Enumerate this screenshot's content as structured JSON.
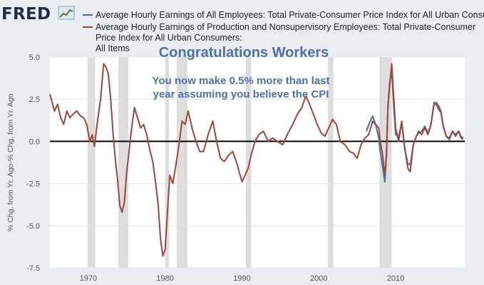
{
  "header": {
    "logo_text": "FRED",
    "logo_icon": "line-chart-icon"
  },
  "colors": {
    "series_cpi": "#4572a7",
    "series_prod": "#a0453a",
    "annotation": "#4f72a6",
    "recession": "#dddddd",
    "plot_bg": "#ffffff",
    "page_bg": "#eaeef3",
    "zero_line": "#000000"
  },
  "chart_data": {
    "type": "line",
    "title": "",
    "xlabel": "",
    "ylabel": "% Chg. from Yr. Ago-% Chg. from Yr. Ago",
    "xlim": [
      1965,
      2019
    ],
    "ylim": [
      -7.5,
      5.0
    ],
    "y_ticks": [
      5.0,
      2.5,
      0.0,
      -2.5,
      -5.0,
      -7.5
    ],
    "y_tick_labels": [
      "5.0",
      "2.5",
      "0.0",
      "-2.5",
      "-5.0",
      "-7.5"
    ],
    "x_ticks": [
      1970,
      1980,
      1990,
      2000,
      2010
    ],
    "x_tick_labels": [
      "1970",
      "1980",
      "1990",
      "2000",
      "2010"
    ],
    "grid": "horizontal",
    "legend_position": "top",
    "series": [
      {
        "name": "Average Hourly Earnings of All Employees: Total Private-Consumer Price Index for All Urban Consumers: All Items",
        "x": [
          2006.2,
          2006.6,
          2007.0,
          2007.4,
          2007.8,
          2008.0,
          2008.3,
          2008.6,
          2008.8,
          2009.0,
          2009.2,
          2009.5,
          2009.7,
          2010.0,
          2010.4,
          2010.8,
          2011.2,
          2011.6,
          2011.9,
          2012.3,
          2012.7,
          2013.0,
          2013.4,
          2013.8,
          2014.2,
          2014.6,
          2015.0,
          2015.3,
          2015.6,
          2015.9,
          2016.2,
          2016.6,
          2017.0,
          2017.4,
          2017.8,
          2018.2,
          2018.5,
          2018.8
        ],
        "values": [
          0.6,
          1.1,
          1.5,
          1.0,
          0.2,
          -0.6,
          -1.5,
          -2.4,
          -0.8,
          2.0,
          3.4,
          4.2,
          2.5,
          0.4,
          0.3,
          1.1,
          -0.5,
          -1.3,
          -1.4,
          -0.2,
          0.3,
          0.5,
          0.6,
          0.9,
          0.5,
          1.0,
          2.3,
          2.3,
          2.1,
          1.8,
          0.9,
          0.3,
          0.1,
          0.6,
          0.3,
          0.6,
          0.2,
          0.1
        ]
      },
      {
        "name": "Average Hourly Earnings of Production and Nonsupervisory Employees: Total Private-Consumer Price Index for All Urban Consumers: All Items",
        "x": [
          1965.0,
          1965.3,
          1965.6,
          1966.0,
          1966.4,
          1966.8,
          1967.2,
          1967.6,
          1968.0,
          1968.5,
          1969.0,
          1969.4,
          1969.8,
          1970.2,
          1970.5,
          1970.8,
          1971.2,
          1971.6,
          1972.0,
          1972.3,
          1972.6,
          1972.9,
          1973.2,
          1973.5,
          1973.8,
          1974.1,
          1974.4,
          1974.7,
          1975.0,
          1975.3,
          1975.7,
          1976.0,
          1976.4,
          1976.8,
          1977.2,
          1977.6,
          1978.0,
          1978.4,
          1978.8,
          1979.1,
          1979.4,
          1979.7,
          1980.0,
          1980.3,
          1980.6,
          1981.0,
          1981.4,
          1981.8,
          1982.2,
          1982.6,
          1983.0,
          1983.5,
          1984.0,
          1984.5,
          1985.0,
          1985.6,
          1986.2,
          1986.7,
          1987.2,
          1987.7,
          1988.3,
          1988.8,
          1989.4,
          1990.0,
          1990.4,
          1990.8,
          1991.2,
          1991.7,
          1992.2,
          1992.8,
          1993.4,
          1994.0,
          1994.6,
          1995.3,
          1996.0,
          1996.6,
          1997.2,
          1997.8,
          1998.3,
          1998.8,
          1999.3,
          1999.8,
          2000.3,
          2000.8,
          2001.3,
          2001.8,
          2002.3,
          2002.8,
          2003.4,
          2004.0,
          2004.5,
          2005.0,
          2005.5,
          2006.0,
          2006.5,
          2007.0,
          2007.4,
          2007.8,
          2008.0,
          2008.3,
          2008.6,
          2008.8,
          2009.0,
          2009.2,
          2009.5,
          2009.7,
          2010.0,
          2010.4,
          2010.8,
          2011.2,
          2011.6,
          2011.9,
          2012.3,
          2012.7,
          2013.0,
          2013.4,
          2013.8,
          2014.2,
          2014.6,
          2015.0,
          2015.3,
          2015.6,
          2015.9,
          2016.2,
          2016.6,
          2017.0,
          2017.4,
          2017.8,
          2018.2,
          2018.5,
          2018.8
        ],
        "values": [
          2.8,
          2.3,
          1.8,
          2.2,
          1.4,
          1.0,
          1.8,
          1.4,
          1.6,
          1.8,
          1.5,
          1.4,
          1.0,
          0.0,
          0.4,
          -0.3,
          1.2,
          2.5,
          4.6,
          4.4,
          4.0,
          2.6,
          0.6,
          -1.0,
          -2.2,
          -3.8,
          -4.2,
          -3.6,
          -1.8,
          -0.6,
          1.0,
          2.0,
          1.4,
          0.8,
          1.0,
          0.4,
          -0.5,
          -1.2,
          -2.6,
          -3.8,
          -5.8,
          -6.8,
          -6.4,
          -4.2,
          -2.0,
          -2.5,
          -1.4,
          -0.2,
          1.2,
          1.0,
          1.8,
          0.8,
          0.0,
          -0.6,
          -0.6,
          0.4,
          1.2,
          0.0,
          -1.0,
          -1.2,
          -0.8,
          -0.6,
          -1.4,
          -2.4,
          -2.0,
          -1.6,
          -0.8,
          0.0,
          0.4,
          0.6,
          0.0,
          0.2,
          0.0,
          -0.2,
          0.5,
          1.0,
          1.6,
          2.0,
          2.7,
          2.2,
          1.6,
          1.0,
          0.5,
          0.3,
          0.8,
          1.3,
          1.0,
          0.0,
          -0.2,
          -0.6,
          -0.7,
          -1.0,
          -0.2,
          0.2,
          0.4,
          1.2,
          1.0,
          0.8,
          0.0,
          -0.8,
          -2.0,
          -0.9,
          2.0,
          3.2,
          4.6,
          3.0,
          0.8,
          0.0,
          1.2,
          -0.4,
          -1.6,
          -1.8,
          -0.2,
          0.3,
          0.6,
          0.4,
          0.8,
          0.4,
          1.0,
          2.2,
          2.2,
          1.9,
          1.7,
          0.9,
          0.3,
          0.2,
          0.6,
          0.4,
          0.6,
          0.3,
          0.2
        ]
      }
    ],
    "recessions": [
      [
        1969.9,
        1970.9
      ],
      [
        1973.9,
        1975.2
      ],
      [
        1980.0,
        1980.5
      ],
      [
        1981.5,
        1982.9
      ],
      [
        1990.5,
        1991.2
      ],
      [
        2001.2,
        2001.9
      ],
      [
        2007.9,
        2009.5
      ]
    ],
    "annotations": [
      "Congratulations Workers",
      "You now make 0.5% more than last",
      "year assuming you believe the CPI"
    ]
  }
}
